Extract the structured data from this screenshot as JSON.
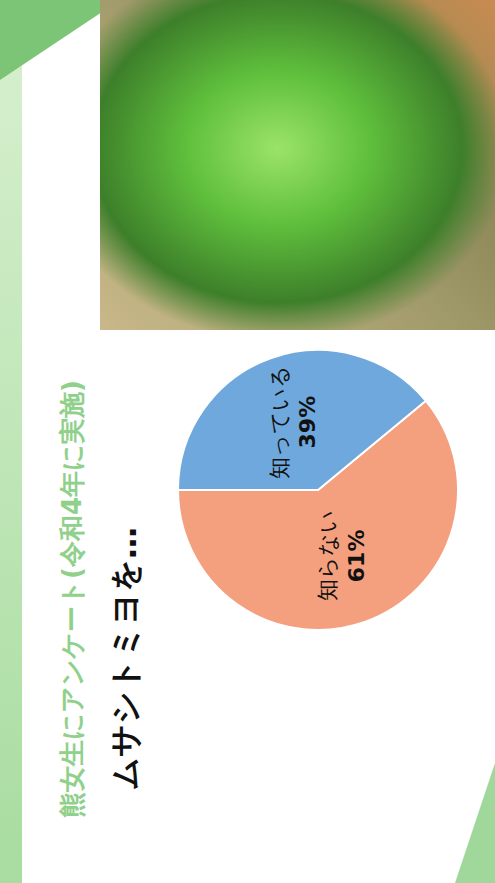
{
  "chart_data": {
    "type": "pie",
    "title": "ムサシトミヨを…",
    "subtitle": "熊女生にアンケート(令和4年に実施)",
    "categories": [
      "知らない",
      "知っている"
    ],
    "values": [
      61,
      39
    ],
    "value_labels": [
      "61%",
      "39%"
    ],
    "colors": [
      "#f4a07f",
      "#6fa8dc"
    ],
    "data_labels": true
  }
}
